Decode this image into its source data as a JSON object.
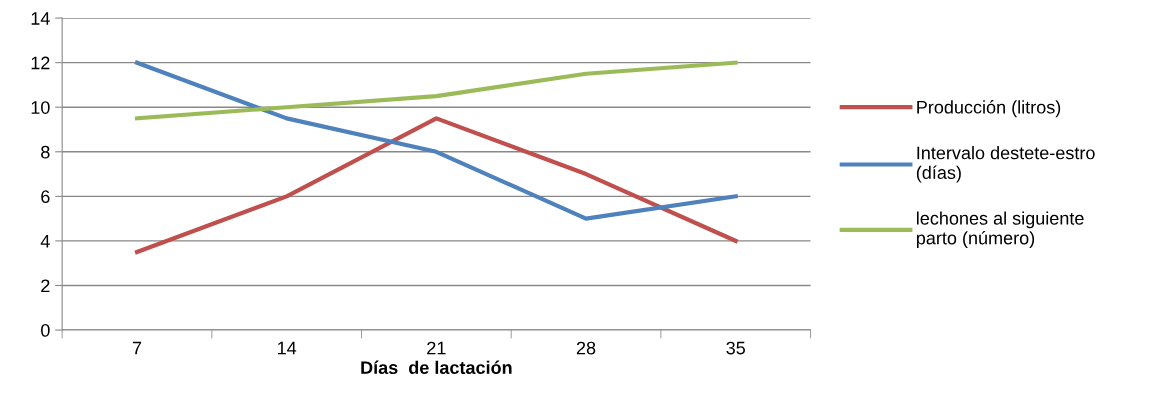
{
  "chart_data": {
    "type": "line",
    "xlabel": "Días  de lactación",
    "categories": [
      "7",
      "14",
      "21",
      "28",
      "35"
    ],
    "series": [
      {
        "name": "Producción (litros)",
        "color": "#c0504d",
        "values": [
          3.5,
          6,
          9.5,
          7,
          4
        ]
      },
      {
        "name": "Intervalo destete-estro\n(días)",
        "color": "#4f81bd",
        "values": [
          12,
          9.5,
          8,
          5,
          6
        ]
      },
      {
        "name": "lechones al siguiente\nparto (número)",
        "color": "#9bbb59",
        "values": [
          9.5,
          10,
          10.5,
          11.5,
          12
        ]
      }
    ],
    "ylim": [
      0,
      14
    ],
    "yticks": [
      0,
      2,
      4,
      6,
      8,
      10,
      12,
      14
    ],
    "grid": "y",
    "legend": "right",
    "marker": "none",
    "line_style": "solid"
  }
}
